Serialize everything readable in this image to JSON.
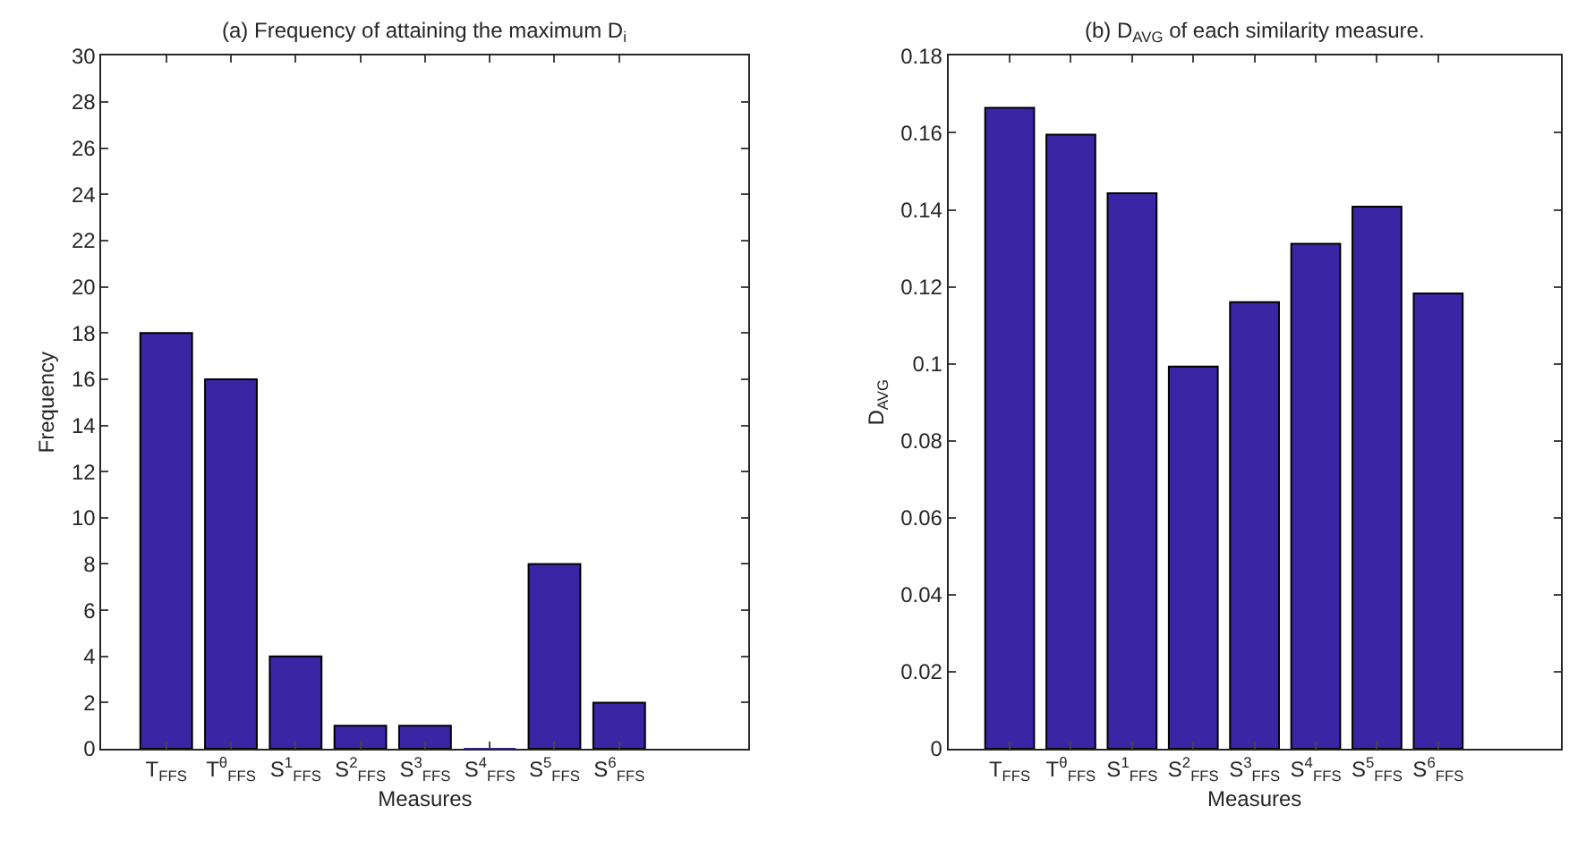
{
  "chart_data": [
    {
      "type": "bar",
      "title": "(a) Frequency of attaining the maximum D$_{i}$",
      "xlabel": "Measures",
      "ylabel": "Frequency",
      "categories": [
        "T$_{FFS}$",
        "T$^{θ}$$_{FFS}$",
        "S$^{1}$$_{FFS}$",
        "S$^{2}$$_{FFS}$",
        "S$^{3}$$_{FFS}$",
        "S$^{4}$$_{FFS}$",
        "S$^{5}$$_{FFS}$",
        "S$^{6}$$_{FFS}$"
      ],
      "values": [
        18,
        16,
        4,
        1,
        1,
        0,
        8,
        2
      ],
      "color": "#3a26a4",
      "ylim": [
        0,
        30
      ],
      "yticks": [
        0,
        2,
        4,
        6,
        8,
        10,
        12,
        14,
        16,
        18,
        20,
        22,
        24,
        26,
        28,
        30
      ]
    },
    {
      "type": "bar",
      "title": "(b) D$_{AVG}$ of each similarity measure.",
      "xlabel": "Measures",
      "ylabel": "D$_{AVG}$",
      "categories": [
        "T$_{FFS}$",
        "T$^{θ}$$_{FFS}$",
        "S$^{1}$$_{FFS}$",
        "S$^{2}$$_{FFS}$",
        "S$^{3}$$_{FFS}$",
        "S$^{4}$$_{FFS}$",
        "S$^{5}$$_{FFS}$",
        "S$^{6}$$_{FFS}$"
      ],
      "values": [
        0.1665,
        0.1595,
        0.1443,
        0.0993,
        0.116,
        0.1312,
        0.1408,
        0.1183
      ],
      "color": "#3a26a4",
      "ylim": [
        0,
        0.18
      ],
      "yticks": [
        0,
        0.02,
        0.04,
        0.06,
        0.08,
        0.1,
        0.12,
        0.14,
        0.16,
        0.18
      ]
    }
  ]
}
